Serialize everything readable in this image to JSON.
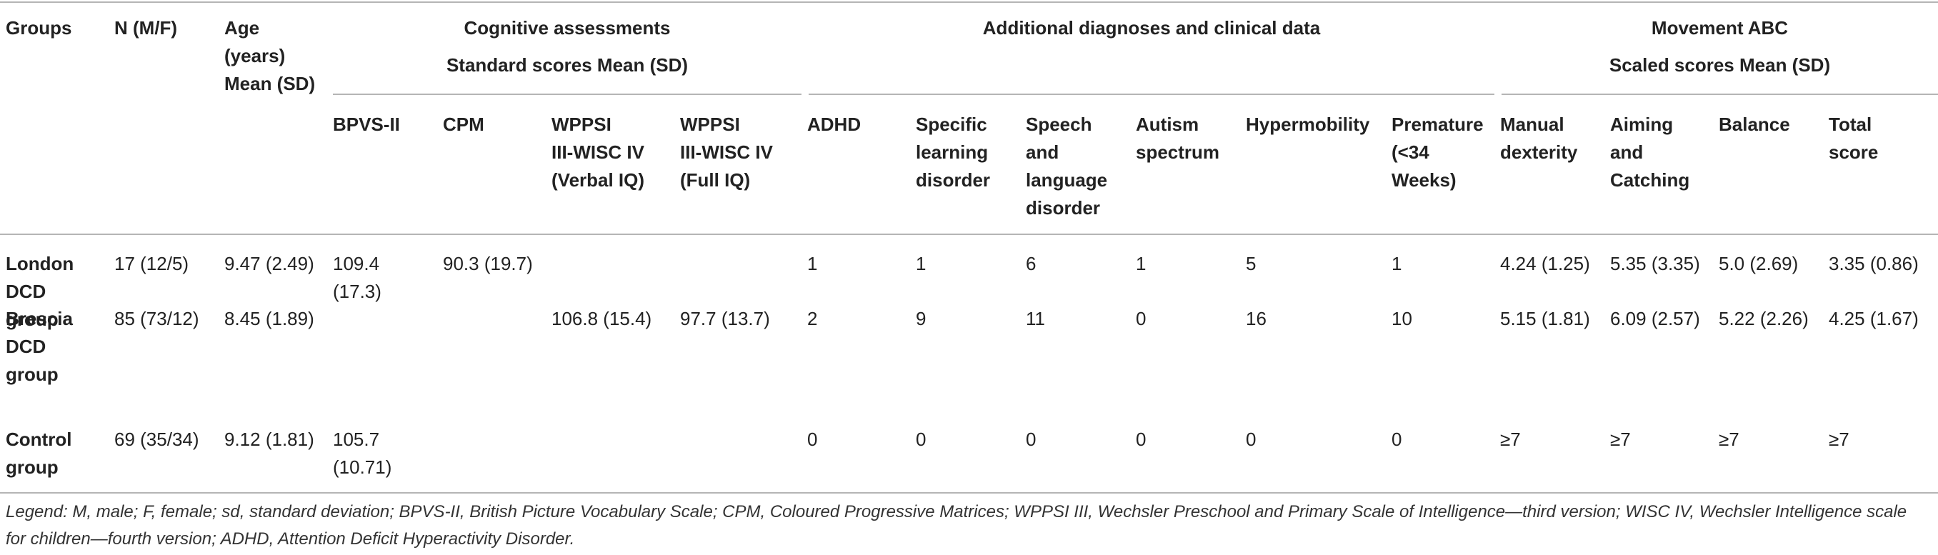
{
  "header": {
    "groups": "Groups",
    "n": "N (M/F)",
    "age": "Age\n(years)\nMean (SD)",
    "cog_title": "Cognitive assessments",
    "cog_sub": "Standard scores Mean (SD)",
    "add_title": "Additional diagnoses and clinical data",
    "mabc_title": "Movement ABC",
    "mabc_sub": "Scaled scores Mean (SD)",
    "sub": {
      "bpvs": "BPVS-II",
      "cpm": "CPM",
      "wppsi_verbal": "WPPSI\nIII-WISC IV\n(Verbal IQ)",
      "wppsi_full": "WPPSI\nIII-WISC IV\n(Full IQ)",
      "adhd": "ADHD",
      "sld": "Specific\nlearning\ndisorder",
      "speech": "Speech\nand\nlanguage\ndisorder",
      "autism": "Autism\nspectrum",
      "hypermobility": "Hypermobility",
      "premature": "Premature\n(<34\nWeeks)",
      "manual": "Manual\ndexterity",
      "aiming": "Aiming\nand\nCatching",
      "balance": "Balance",
      "total": "Total\nscore"
    }
  },
  "rows": [
    {
      "group": "London\nDCD\ngroup",
      "n": "17 (12/5)",
      "age": "9.47 (2.49)",
      "bpvs": "109.4\n(17.3)",
      "cpm": "90.3 (19.7)",
      "wppsi_verbal": "",
      "wppsi_full": "",
      "adhd": "1",
      "sld": "1",
      "speech": "6",
      "autism": "1",
      "hypermobility": "5",
      "premature": "1",
      "manual": "4.24 (1.25)",
      "aiming": "5.35 (3.35)",
      "balance": "5.0 (2.69)",
      "total": "3.35 (0.86)"
    },
    {
      "group": "Brescia\nDCD\ngroup",
      "n": "85 (73/12)",
      "age": "8.45 (1.89)",
      "bpvs": "",
      "cpm": "",
      "wppsi_verbal": "106.8 (15.4)",
      "wppsi_full": "97.7 (13.7)",
      "adhd": "2",
      "sld": "9",
      "speech": "11",
      "autism": "0",
      "hypermobility": "16",
      "premature": "10",
      "manual": "5.15 (1.81)",
      "aiming": "6.09 (2.57)",
      "balance": "5.22 (2.26)",
      "total": "4.25 (1.67)"
    },
    {
      "group": "Control\ngroup",
      "n": "69 (35/34)",
      "age": "9.12 (1.81)",
      "bpvs": "105.7\n(10.71)",
      "cpm": "",
      "wppsi_verbal": "",
      "wppsi_full": "",
      "adhd": "0",
      "sld": "0",
      "speech": "0",
      "autism": "0",
      "hypermobility": "0",
      "premature": "0",
      "manual": "≥7",
      "aiming": "≥7",
      "balance": "≥7",
      "total": "≥7"
    }
  ],
  "legend": "Legend: M, male; F, female; sd, standard deviation; BPVS-II, British Picture Vocabulary Scale; CPM, Coloured Progressive Matrices; WPPSI III, Wechsler Preschool and Primary Scale of Intelligence—third version; WISC IV, Wechsler Intelligence scale for children—fourth version; ADHD, Attention Deficit Hyperactivity Disorder."
}
